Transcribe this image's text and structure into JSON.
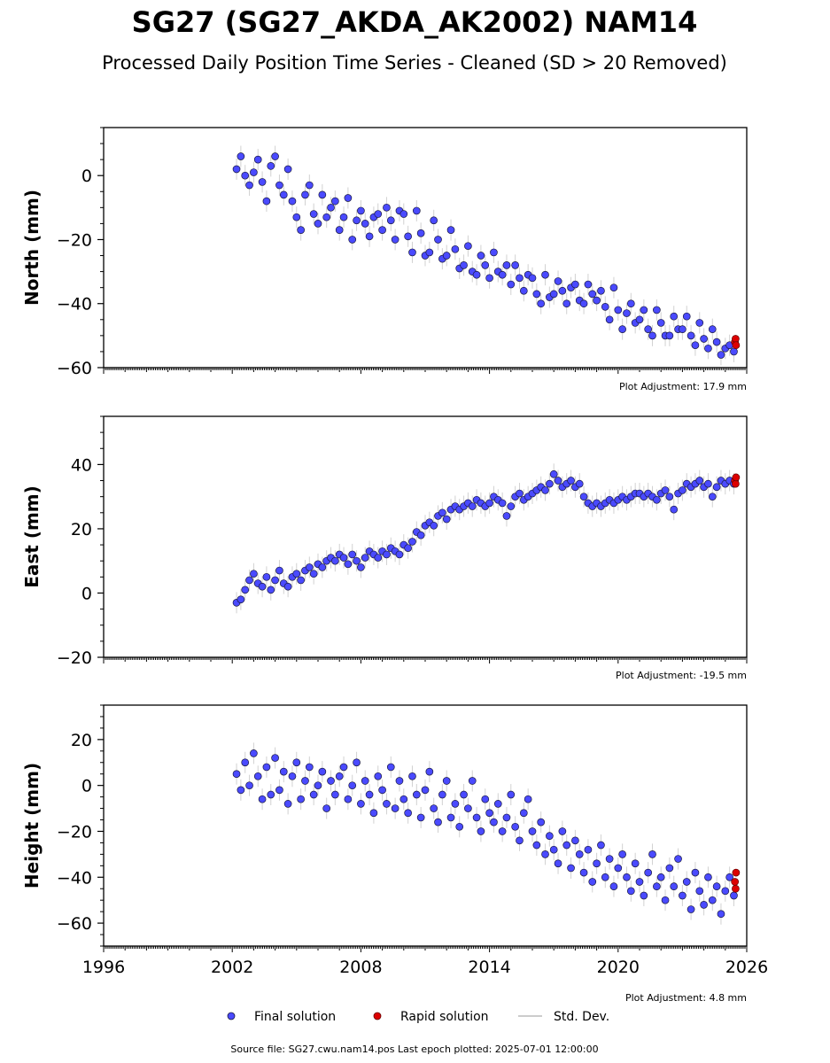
{
  "title": "SG27 (SG27_AKDA_AK2002) NAM14",
  "subtitle": "Processed Daily Position Time Series - Cleaned (SD > 20 Removed)",
  "footer": "Source file: SG27.cwu.nam14.pos  Last epoch plotted: 2025-07-01 12:00:00",
  "colors": {
    "final": "#4a4aff",
    "rapid": "#dd0000",
    "stddev": "#999999",
    "edge": "#1a1a40"
  },
  "legend": {
    "placement": "bottom-center",
    "final_label": "Final solution",
    "rapid_label": "Rapid solution",
    "stddev_label": "Std. Dev."
  },
  "chart_data": [
    {
      "type": "scatter",
      "ylabel": "North (mm)",
      "adjustment": "Plot Adjustment: 17.9 mm",
      "xlim": [
        1996,
        2026
      ],
      "ylim": [
        -60,
        15
      ],
      "yticks": [
        -60,
        -40,
        -20,
        0
      ],
      "xticks": [],
      "series": [
        {
          "kind": "final",
          "x": [
            2002.2,
            2002.4,
            2002.6,
            2002.8,
            2003.0,
            2003.2,
            2003.4,
            2003.6,
            2003.8,
            2004.0,
            2004.2,
            2004.4,
            2004.6,
            2004.8,
            2005.0,
            2005.2,
            2005.4,
            2005.6,
            2005.8,
            2006.0,
            2006.2,
            2006.4,
            2006.6,
            2006.8,
            2007.0,
            2007.2,
            2007.4,
            2007.6,
            2007.8,
            2008.0,
            2008.2,
            2008.4,
            2008.6,
            2008.8,
            2009.0,
            2009.2,
            2009.4,
            2009.6,
            2009.8,
            2010.0,
            2010.2,
            2010.4,
            2010.6,
            2010.8,
            2011.0,
            2011.2,
            2011.4,
            2011.6,
            2011.8,
            2012.0,
            2012.2,
            2012.4,
            2012.6,
            2012.8,
            2013.0,
            2013.2,
            2013.4,
            2013.6,
            2013.8,
            2014.0,
            2014.2,
            2014.4,
            2014.6,
            2014.8,
            2015.0,
            2015.2,
            2015.4,
            2015.6,
            2015.8,
            2016.0,
            2016.2,
            2016.4,
            2016.6,
            2016.8,
            2017.0,
            2017.2,
            2017.4,
            2017.6,
            2017.8,
            2018.0,
            2018.2,
            2018.4,
            2018.6,
            2018.8,
            2019.0,
            2019.2,
            2019.4,
            2019.6,
            2019.8,
            2020.0,
            2020.2,
            2020.4,
            2020.6,
            2020.8,
            2021.0,
            2021.2,
            2021.4,
            2021.6,
            2021.8,
            2022.0,
            2022.2,
            2022.4,
            2022.6,
            2022.8,
            2023.0,
            2023.2,
            2023.4,
            2023.6,
            2023.8,
            2024.0,
            2024.2,
            2024.4,
            2024.6,
            2024.8,
            2025.0,
            2025.2,
            2025.4
          ],
          "y": [
            2,
            6,
            0,
            -3,
            1,
            5,
            -2,
            -8,
            3,
            6,
            -3,
            -6,
            2,
            -8,
            -13,
            -17,
            -6,
            -3,
            -12,
            -15,
            -6,
            -13,
            -10,
            -8,
            -17,
            -13,
            -7,
            -20,
            -14,
            -11,
            -15,
            -19,
            -13,
            -12,
            -17,
            -10,
            -14,
            -20,
            -11,
            -12,
            -19,
            -24,
            -11,
            -18,
            -25,
            -24,
            -14,
            -20,
            -26,
            -25,
            -17,
            -23,
            -29,
            -28,
            -22,
            -30,
            -31,
            -25,
            -28,
            -32,
            -24,
            -30,
            -31,
            -28,
            -34,
            -28,
            -32,
            -36,
            -31,
            -32,
            -37,
            -40,
            -31,
            -38,
            -37,
            -33,
            -36,
            -40,
            -35,
            -34,
            -39,
            -40,
            -34,
            -37,
            -39,
            -36,
            -41,
            -45,
            -35,
            -42,
            -48,
            -43,
            -40,
            -46,
            -45,
            -42,
            -48,
            -50,
            -42,
            -46,
            -50,
            -50,
            -44,
            -48,
            -48,
            -44,
            -50,
            -53,
            -46,
            -51,
            -54,
            -48,
            -52,
            -56,
            -54,
            -53,
            -55
          ]
        },
        {
          "kind": "rapid",
          "x": [
            2025.45,
            2025.48,
            2025.5
          ],
          "y": [
            -52,
            -51,
            -53
          ]
        }
      ]
    },
    {
      "type": "scatter",
      "ylabel": "East (mm)",
      "adjustment": "Plot Adjustment: -19.5 mm",
      "xlim": [
        1996,
        2026
      ],
      "ylim": [
        -20,
        55
      ],
      "yticks": [
        -20,
        0,
        20,
        40
      ],
      "xticks": [],
      "series": [
        {
          "kind": "final",
          "x": [
            2002.2,
            2002.4,
            2002.6,
            2002.8,
            2003.0,
            2003.2,
            2003.4,
            2003.6,
            2003.8,
            2004.0,
            2004.2,
            2004.4,
            2004.6,
            2004.8,
            2005.0,
            2005.2,
            2005.4,
            2005.6,
            2005.8,
            2006.0,
            2006.2,
            2006.4,
            2006.6,
            2006.8,
            2007.0,
            2007.2,
            2007.4,
            2007.6,
            2007.8,
            2008.0,
            2008.2,
            2008.4,
            2008.6,
            2008.8,
            2009.0,
            2009.2,
            2009.4,
            2009.6,
            2009.8,
            2010.0,
            2010.2,
            2010.4,
            2010.6,
            2010.8,
            2011.0,
            2011.2,
            2011.4,
            2011.6,
            2011.8,
            2012.0,
            2012.2,
            2012.4,
            2012.6,
            2012.8,
            2013.0,
            2013.2,
            2013.4,
            2013.6,
            2013.8,
            2014.0,
            2014.2,
            2014.4,
            2014.6,
            2014.8,
            2015.0,
            2015.2,
            2015.4,
            2015.6,
            2015.8,
            2016.0,
            2016.2,
            2016.4,
            2016.6,
            2016.8,
            2017.0,
            2017.2,
            2017.4,
            2017.6,
            2017.8,
            2018.0,
            2018.2,
            2018.4,
            2018.6,
            2018.8,
            2019.0,
            2019.2,
            2019.4,
            2019.6,
            2019.8,
            2020.0,
            2020.2,
            2020.4,
            2020.6,
            2020.8,
            2021.0,
            2021.2,
            2021.4,
            2021.6,
            2021.8,
            2022.0,
            2022.2,
            2022.4,
            2022.6,
            2022.8,
            2023.0,
            2023.2,
            2023.4,
            2023.6,
            2023.8,
            2024.0,
            2024.2,
            2024.4,
            2024.6,
            2024.8,
            2025.0,
            2025.2,
            2025.4
          ],
          "y": [
            -3,
            -2,
            1,
            4,
            6,
            3,
            2,
            5,
            1,
            4,
            7,
            3,
            2,
            5,
            6,
            4,
            7,
            8,
            6,
            9,
            8,
            10,
            11,
            10,
            12,
            11,
            9,
            12,
            10,
            8,
            11,
            13,
            12,
            11,
            13,
            12,
            14,
            13,
            12,
            15,
            14,
            16,
            19,
            18,
            21,
            22,
            21,
            24,
            25,
            23,
            26,
            27,
            26,
            27,
            28,
            27,
            29,
            28,
            27,
            28,
            30,
            29,
            28,
            24,
            27,
            30,
            31,
            29,
            30,
            31,
            32,
            33,
            32,
            34,
            37,
            35,
            33,
            34,
            35,
            33,
            34,
            30,
            28,
            27,
            28,
            27,
            28,
            29,
            28,
            29,
            30,
            29,
            30,
            31,
            31,
            30,
            31,
            30,
            29,
            31,
            32,
            30,
            26,
            31,
            32,
            34,
            33,
            34,
            35,
            33,
            34,
            30,
            33,
            35,
            34,
            35,
            34
          ]
        },
        {
          "kind": "rapid",
          "x": [
            2025.45,
            2025.48,
            2025.5
          ],
          "y": [
            35,
            34,
            36
          ]
        }
      ]
    },
    {
      "type": "scatter",
      "ylabel": "Height (mm)",
      "adjustment": "Plot Adjustment: 4.8 mm",
      "xlim": [
        1996,
        2026
      ],
      "ylim": [
        -70,
        35
      ],
      "yticks": [
        -60,
        -40,
        -20,
        0,
        20
      ],
      "xticks": [
        1996,
        2002,
        2008,
        2014,
        2020,
        2026
      ],
      "series": [
        {
          "kind": "final",
          "x": [
            2002.2,
            2002.4,
            2002.6,
            2002.8,
            2003.0,
            2003.2,
            2003.4,
            2003.6,
            2003.8,
            2004.0,
            2004.2,
            2004.4,
            2004.6,
            2004.8,
            2005.0,
            2005.2,
            2005.4,
            2005.6,
            2005.8,
            2006.0,
            2006.2,
            2006.4,
            2006.6,
            2006.8,
            2007.0,
            2007.2,
            2007.4,
            2007.6,
            2007.8,
            2008.0,
            2008.2,
            2008.4,
            2008.6,
            2008.8,
            2009.0,
            2009.2,
            2009.4,
            2009.6,
            2009.8,
            2010.0,
            2010.2,
            2010.4,
            2010.6,
            2010.8,
            2011.0,
            2011.2,
            2011.4,
            2011.6,
            2011.8,
            2012.0,
            2012.2,
            2012.4,
            2012.6,
            2012.8,
            2013.0,
            2013.2,
            2013.4,
            2013.6,
            2013.8,
            2014.0,
            2014.2,
            2014.4,
            2014.6,
            2014.8,
            2015.0,
            2015.2,
            2015.4,
            2015.6,
            2015.8,
            2016.0,
            2016.2,
            2016.4,
            2016.6,
            2016.8,
            2017.0,
            2017.2,
            2017.4,
            2017.6,
            2017.8,
            2018.0,
            2018.2,
            2018.4,
            2018.6,
            2018.8,
            2019.0,
            2019.2,
            2019.4,
            2019.6,
            2019.8,
            2020.0,
            2020.2,
            2020.4,
            2020.6,
            2020.8,
            2021.0,
            2021.2,
            2021.4,
            2021.6,
            2021.8,
            2022.0,
            2022.2,
            2022.4,
            2022.6,
            2022.8,
            2023.0,
            2023.2,
            2023.4,
            2023.6,
            2023.8,
            2024.0,
            2024.2,
            2024.4,
            2024.6,
            2024.8,
            2025.0,
            2025.2,
            2025.4
          ],
          "y": [
            5,
            -2,
            10,
            0,
            14,
            4,
            -6,
            8,
            -4,
            12,
            -2,
            6,
            -8,
            4,
            10,
            -6,
            2,
            8,
            -4,
            0,
            6,
            -10,
            2,
            -4,
            4,
            8,
            -6,
            0,
            10,
            -8,
            2,
            -4,
            -12,
            4,
            -2,
            -8,
            8,
            -10,
            2,
            -6,
            -12,
            4,
            -4,
            -14,
            -2,
            6,
            -10,
            -16,
            -4,
            2,
            -14,
            -8,
            -18,
            -4,
            -10,
            2,
            -14,
            -20,
            -6,
            -12,
            -16,
            -8,
            -20,
            -14,
            -4,
            -18,
            -24,
            -12,
            -6,
            -20,
            -26,
            -16,
            -30,
            -22,
            -28,
            -34,
            -20,
            -26,
            -36,
            -24,
            -30,
            -38,
            -28,
            -42,
            -34,
            -26,
            -40,
            -32,
            -44,
            -36,
            -30,
            -40,
            -46,
            -34,
            -42,
            -48,
            -38,
            -30,
            -44,
            -40,
            -50,
            -36,
            -44,
            -32,
            -48,
            -42,
            -54,
            -38,
            -46,
            -52,
            -40,
            -50,
            -44,
            -56,
            -46,
            -40,
            -48
          ]
        },
        {
          "kind": "rapid",
          "x": [
            2025.45,
            2025.48,
            2025.5
          ],
          "y": [
            -42,
            -45,
            -38
          ]
        }
      ]
    }
  ]
}
